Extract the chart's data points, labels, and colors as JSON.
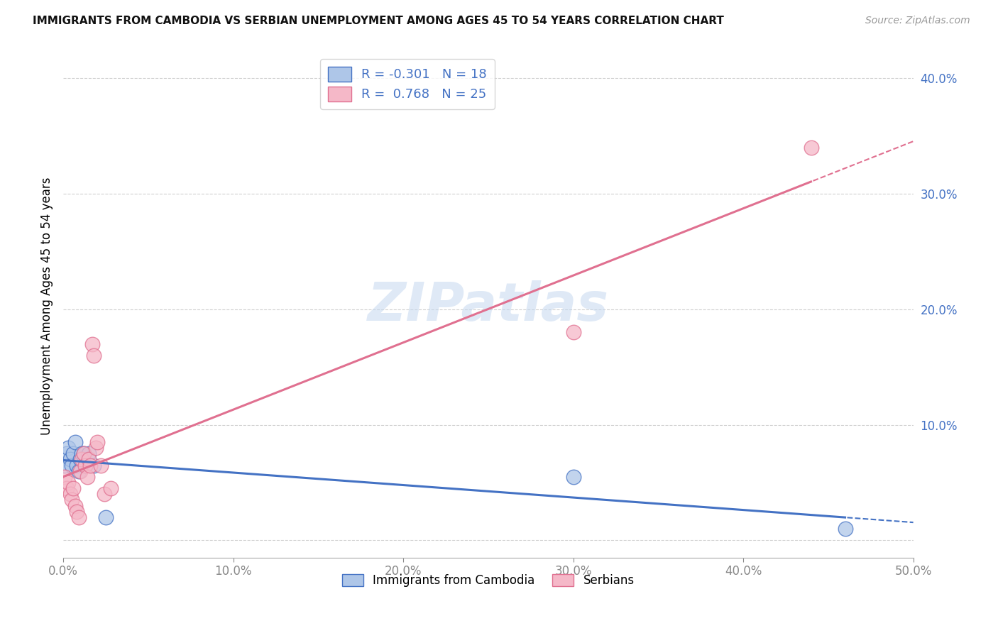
{
  "title": "IMMIGRANTS FROM CAMBODIA VS SERBIAN UNEMPLOYMENT AMONG AGES 45 TO 54 YEARS CORRELATION CHART",
  "source": "Source: ZipAtlas.com",
  "ylabel": "Unemployment Among Ages 45 to 54 years",
  "watermark": "ZIPatlas",
  "xlim": [
    0.0,
    0.5
  ],
  "ylim": [
    -0.015,
    0.42
  ],
  "xticks": [
    0.0,
    0.1,
    0.2,
    0.3,
    0.4,
    0.5
  ],
  "yticks": [
    0.0,
    0.1,
    0.2,
    0.3,
    0.4
  ],
  "xtick_labels": [
    "0.0%",
    "10.0%",
    "20.0%",
    "30.0%",
    "40.0%",
    "50.0%"
  ],
  "ytick_labels": [
    "",
    "10.0%",
    "20.0%",
    "30.0%",
    "40.0%"
  ],
  "cambodia_x": [
    0.001,
    0.002,
    0.003,
    0.004,
    0.005,
    0.006,
    0.007,
    0.008,
    0.009,
    0.01,
    0.011,
    0.012,
    0.013,
    0.015,
    0.018,
    0.025,
    0.3,
    0.46
  ],
  "cambodia_y": [
    0.065,
    0.075,
    0.08,
    0.07,
    0.065,
    0.075,
    0.085,
    0.065,
    0.06,
    0.07,
    0.075,
    0.075,
    0.065,
    0.075,
    0.065,
    0.02,
    0.055,
    0.01
  ],
  "serbian_x": [
    0.001,
    0.002,
    0.003,
    0.004,
    0.005,
    0.006,
    0.007,
    0.008,
    0.009,
    0.01,
    0.011,
    0.012,
    0.013,
    0.014,
    0.015,
    0.016,
    0.017,
    0.018,
    0.019,
    0.02,
    0.022,
    0.024,
    0.028,
    0.3,
    0.44
  ],
  "serbian_y": [
    0.055,
    0.045,
    0.05,
    0.04,
    0.035,
    0.045,
    0.03,
    0.025,
    0.02,
    0.06,
    0.07,
    0.075,
    0.065,
    0.055,
    0.07,
    0.065,
    0.17,
    0.16,
    0.08,
    0.085,
    0.065,
    0.04,
    0.045,
    0.18,
    0.34
  ],
  "cambodia_color": "#aec6e8",
  "serbian_color": "#f5b8c8",
  "cambodia_line_color": "#4472c4",
  "serbian_line_color": "#e07090",
  "cambodia_R": -0.301,
  "cambodia_N": 18,
  "serbian_R": 0.768,
  "serbian_N": 25,
  "grid_color": "#d0d0d0",
  "axis_label_color": "#4472c4",
  "title_color": "#111111"
}
